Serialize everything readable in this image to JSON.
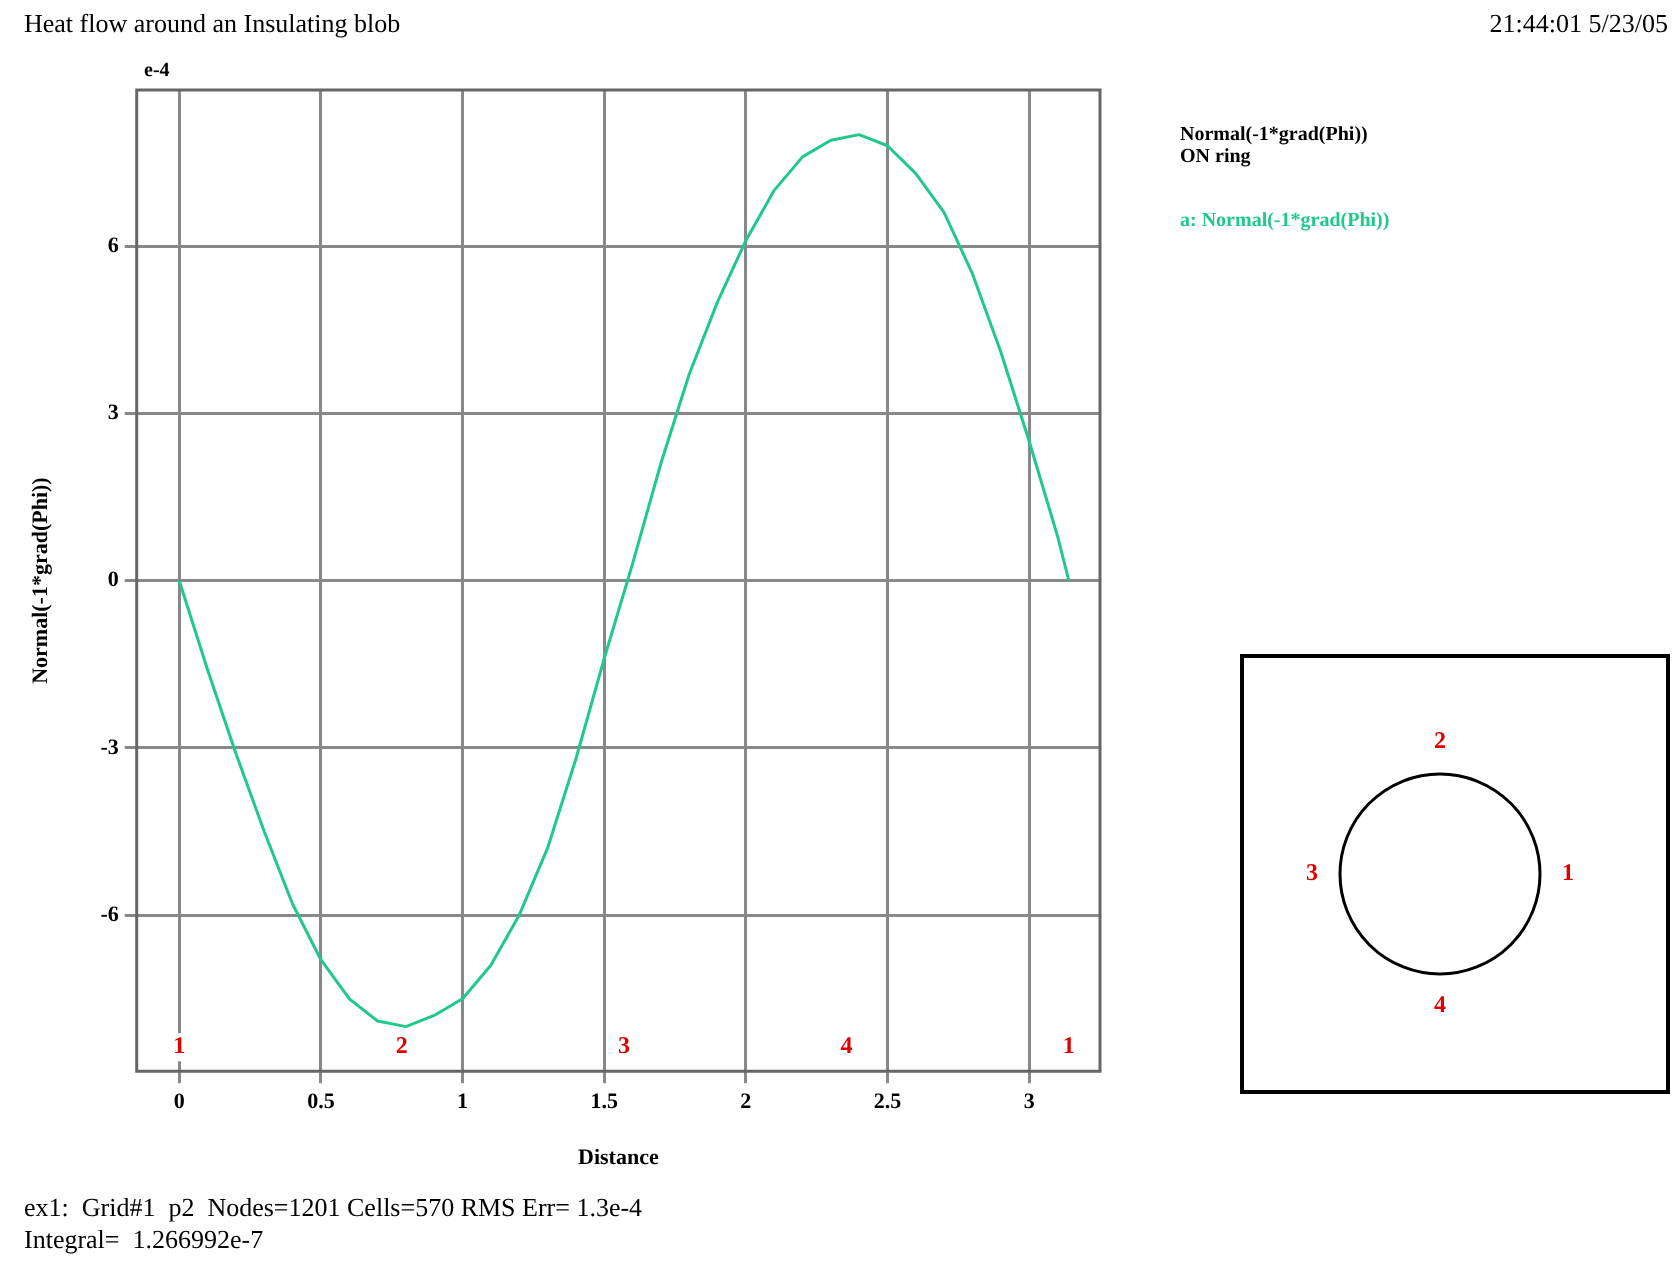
{
  "chart_data": {
    "type": "line",
    "title": "Heat flow around an Insulating blob",
    "xlabel": "Distance",
    "ylabel": "Normal(-1*grad(Phi))",
    "x": [
      0,
      0.1,
      0.2,
      0.3,
      0.4,
      0.5,
      0.6,
      0.7,
      0.8,
      0.9,
      1.0,
      1.1,
      1.2,
      1.3,
      1.4,
      1.5,
      1.6,
      1.7,
      1.8,
      1.9,
      2.0,
      2.1,
      2.2,
      2.3,
      2.4,
      2.5,
      2.6,
      2.7,
      2.8,
      2.9,
      3.0,
      3.1,
      3.14
    ],
    "series": [
      {
        "name": "a: Normal(-1*grad(Phi))",
        "color": "#20c98a",
        "values": [
          0,
          -1.6,
          -3.1,
          -4.5,
          -5.8,
          -6.8,
          -7.5,
          -7.9,
          -8.0,
          -7.8,
          -7.5,
          -6.9,
          -6.0,
          -4.8,
          -3.2,
          -1.4,
          0.3,
          2.1,
          3.7,
          5.0,
          6.1,
          7.0,
          7.6,
          7.9,
          8.0,
          7.8,
          7.3,
          6.6,
          5.5,
          4.1,
          2.5,
          0.8,
          0
        ]
      }
    ],
    "xlim": [
      -0.15,
      3.25
    ],
    "xticks": [
      0,
      0.5,
      1,
      1.5,
      2,
      2.5,
      3
    ],
    "ylim": [
      -8.8,
      8.8
    ],
    "yticks": [
      -6,
      -3,
      0,
      3,
      6
    ],
    "grid": true,
    "legend": "top right",
    "marker": "none",
    "line_style": "solid",
    "annotations": [
      "e-4",
      "21:44:01 5/23/05",
      "Normal(-1*grad(Phi))",
      "ON ring",
      "ex1:  Grid#1  p2  Nodes=1201 Cells=570 RMS Err= 1.3e-4",
      "Integral=  1.266992e-7",
      "1",
      "2",
      "3",
      "4",
      "1",
      "2",
      "3",
      "4",
      "1"
    ]
  }
}
